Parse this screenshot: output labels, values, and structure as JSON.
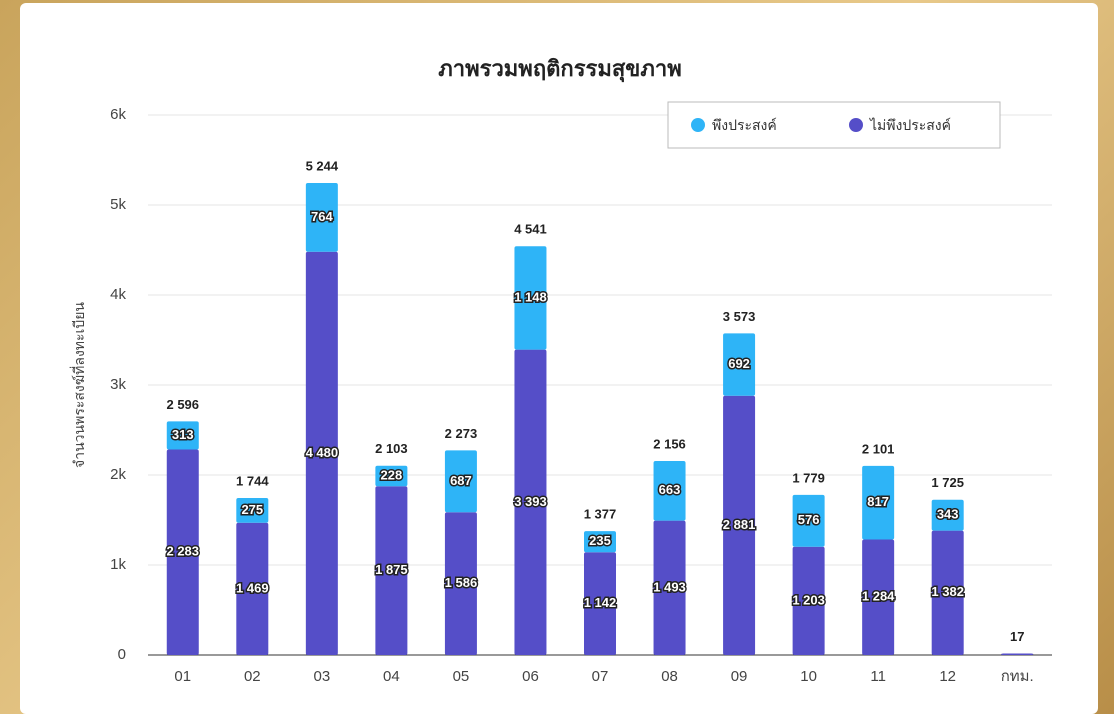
{
  "chart_data": {
    "type": "stacked-bar",
    "title": "ภาพรวมพฤติกรรมสุขภาพ",
    "y_label": "จำนวนพระสงฆ์ที่ลงทะเบียน",
    "categories": [
      "01",
      "02",
      "03",
      "04",
      "05",
      "06",
      "07",
      "08",
      "09",
      "10",
      "11",
      "12",
      "กทม."
    ],
    "series": [
      {
        "name": "ไม่พึงประสงค์",
        "color": "#554ec8",
        "values": [
          2283,
          1469,
          4480,
          1875,
          1586,
          3393,
          1142,
          1493,
          2881,
          1203,
          1284,
          1382,
          17
        ],
        "value_labels": [
          "2 283",
          "1 469",
          "4 480",
          "1 875",
          "1 586",
          "3 393",
          "1 142",
          "1 493",
          "2 881",
          "1 203",
          "1 284",
          "1 382",
          null
        ]
      },
      {
        "name": "พึงประสงค์",
        "color": "#2eb4f7",
        "values": [
          313,
          275,
          764,
          228,
          687,
          1148,
          235,
          663,
          692,
          576,
          817,
          343,
          0
        ],
        "value_labels": [
          "313",
          "275",
          "764",
          "228",
          "687",
          "1 148",
          "235",
          "663",
          "692",
          "576",
          "817",
          "343",
          null
        ]
      }
    ],
    "totals": [
      2596,
      1744,
      5244,
      2103,
      2273,
      4541,
      1377,
      2156,
      3573,
      1779,
      2101,
      1725,
      17
    ],
    "total_labels": [
      "2 596",
      "1 744",
      "5 244",
      "2 103",
      "2 273",
      "4 541",
      "1 377",
      "2 156",
      "3 573",
      "1 779",
      "2 101",
      "1 725",
      "17"
    ],
    "ylim": [
      0,
      6000
    ],
    "yticks": [
      0,
      {
        "value": 1000,
        "label": "1k"
      },
      {
        "value": 2000,
        "label": "2k"
      },
      {
        "value": 3000,
        "label": "3k"
      },
      {
        "value": 4000,
        "label": "4k"
      },
      {
        "value": 5000,
        "label": "5k"
      },
      {
        "value": 6000,
        "label": "6k"
      }
    ],
    "grid": true,
    "legend": "top-right"
  }
}
